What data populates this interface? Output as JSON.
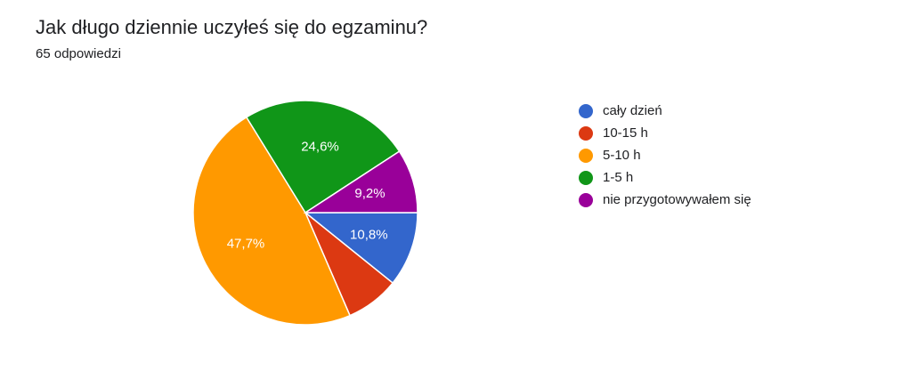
{
  "header": {
    "title": "Jak długo dziennie uczyłeś się do egzaminu?",
    "subtitle": "65 odpowiedzi"
  },
  "chart_data": {
    "type": "pie",
    "title": "Jak długo dziennie uczyłeś się do egzaminu?",
    "legend_position": "right",
    "slices": [
      {
        "label": "cały dzień",
        "value": 10.8,
        "value_label": "10,8%",
        "color": "#3366cc"
      },
      {
        "label": "10-15 h",
        "value": 7.7,
        "value_label": "",
        "color": "#dc3912"
      },
      {
        "label": "5-10 h",
        "value": 47.7,
        "value_label": "47,7%",
        "color": "#ff9900"
      },
      {
        "label": "1-5 h",
        "value": 24.6,
        "value_label": "24,6%",
        "color": "#109618"
      },
      {
        "label": "nie przygotowywałem się",
        "value": 9.2,
        "value_label": "9,2%",
        "color": "#990099"
      }
    ]
  }
}
